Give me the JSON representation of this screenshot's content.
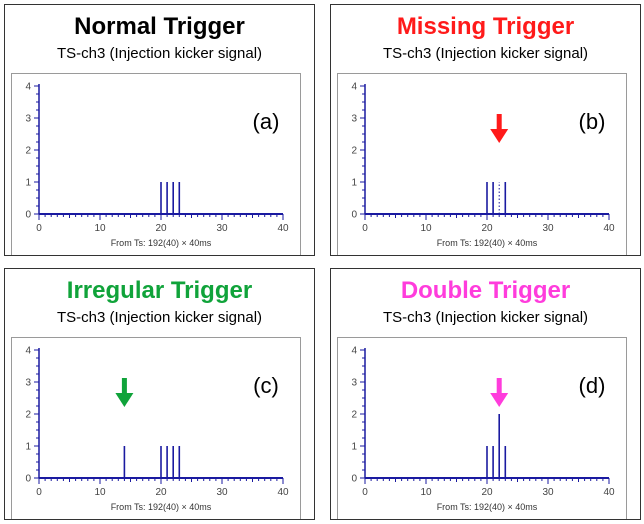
{
  "colors": {
    "trace": "#1a1aa0",
    "axis": "#1a1aa0",
    "red": "#ff1a1a",
    "green": "#10a33a",
    "magenta": "#ff3cdc"
  },
  "chart_data": [
    {
      "type": "bar",
      "panel_letter": "(a)",
      "title": "Normal Trigger",
      "title_color": "#000000",
      "subtitle": "TS-ch3 (Injection kicker signal)",
      "xlabel": "From Ts: 192(40) × 40ms",
      "xlim": [
        0,
        40
      ],
      "ylim": [
        0,
        4
      ],
      "xticks": [
        "0",
        "10",
        "20",
        "30",
        "40"
      ],
      "yticks": [
        "0",
        "1",
        "2",
        "3",
        "4"
      ],
      "pulses": [
        {
          "x": 20,
          "y": 1
        },
        {
          "x": 21,
          "y": 1
        },
        {
          "x": 22,
          "y": 1
        },
        {
          "x": 23,
          "y": 1
        }
      ],
      "missing": [],
      "arrow": null
    },
    {
      "type": "bar",
      "panel_letter": "(b)",
      "title": "Missing Trigger",
      "title_color": "#ff1a1a",
      "subtitle": "TS-ch3 (Injection kicker signal)",
      "xlabel": "From Ts: 192(40) × 40ms",
      "xlim": [
        0,
        40
      ],
      "ylim": [
        0,
        4
      ],
      "xticks": [
        "0",
        "10",
        "20",
        "30",
        "40"
      ],
      "yticks": [
        "0",
        "1",
        "2",
        "3",
        "4"
      ],
      "pulses": [
        {
          "x": 20,
          "y": 1
        },
        {
          "x": 21,
          "y": 1
        },
        {
          "x": 23,
          "y": 1
        }
      ],
      "missing": [
        {
          "x": 22,
          "y": 1
        }
      ],
      "arrow": {
        "x": 22,
        "color": "#ff1a1a"
      }
    },
    {
      "type": "bar",
      "panel_letter": "(c)",
      "title": "Irregular Trigger",
      "title_color": "#10a33a",
      "subtitle": "TS-ch3 (Injection kicker signal)",
      "xlabel": "From Ts: 192(40) × 40ms",
      "xlim": [
        0,
        40
      ],
      "ylim": [
        0,
        4
      ],
      "xticks": [
        "0",
        "10",
        "20",
        "30",
        "40"
      ],
      "yticks": [
        "0",
        "1",
        "2",
        "3",
        "4"
      ],
      "pulses": [
        {
          "x": 14,
          "y": 1
        },
        {
          "x": 20,
          "y": 1
        },
        {
          "x": 21,
          "y": 1
        },
        {
          "x": 22,
          "y": 1
        },
        {
          "x": 23,
          "y": 1
        }
      ],
      "missing": [],
      "arrow": {
        "x": 14,
        "color": "#10a33a"
      }
    },
    {
      "type": "bar",
      "panel_letter": "(d)",
      "title": "Double Trigger",
      "title_color": "#ff3cdc",
      "subtitle": "TS-ch3 (Injection kicker signal)",
      "xlabel": "From Ts: 192(40) × 40ms",
      "xlim": [
        0,
        40
      ],
      "ylim": [
        0,
        4
      ],
      "xticks": [
        "0",
        "10",
        "20",
        "30",
        "40"
      ],
      "yticks": [
        "0",
        "1",
        "2",
        "3",
        "4"
      ],
      "pulses": [
        {
          "x": 20,
          "y": 1
        },
        {
          "x": 21,
          "y": 1
        },
        {
          "x": 22,
          "y": 2
        },
        {
          "x": 23,
          "y": 1
        }
      ],
      "missing": [],
      "arrow": {
        "x": 22,
        "color": "#ff3cdc"
      }
    }
  ]
}
